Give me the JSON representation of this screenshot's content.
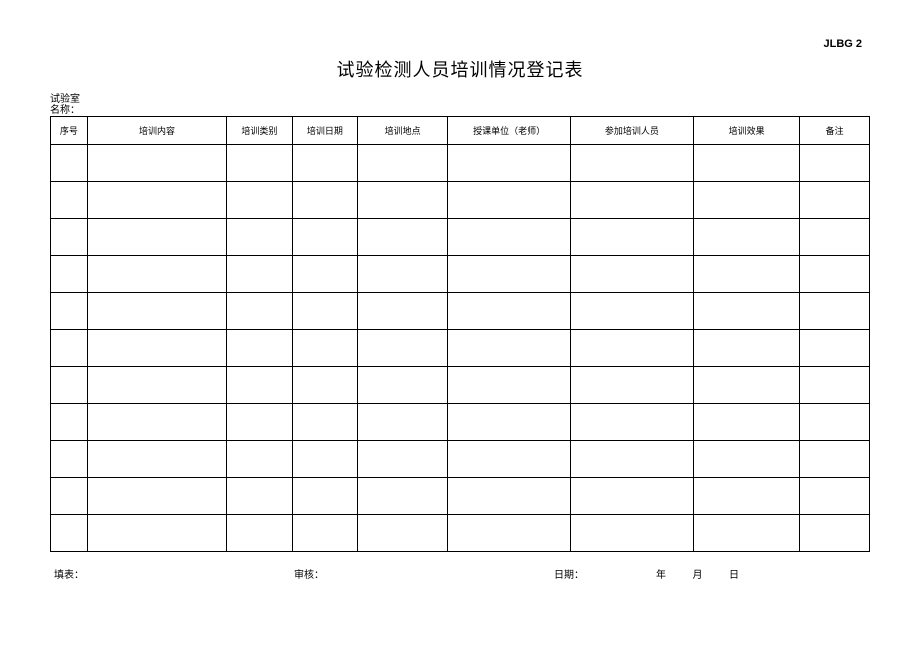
{
  "document_code": "JLBG 2",
  "title": "试验检测人员培训情况登记表",
  "lab_label_line1": "试验室",
  "lab_label_line2": "名称：",
  "columns": [
    {
      "label": "序号",
      "width": "4.5%"
    },
    {
      "label": "培训内容",
      "width": "17%"
    },
    {
      "label": "培训类别",
      "width": "8%"
    },
    {
      "label": "培训日期",
      "width": "8%"
    },
    {
      "label": "培训地点",
      "width": "11%"
    },
    {
      "label": "授课单位（老师）",
      "width": "15%"
    },
    {
      "label": "参加培训人员",
      "width": "15%"
    },
    {
      "label": "培训效果",
      "width": "13%"
    },
    {
      "label": "备注",
      "width": "8.5%"
    }
  ],
  "row_count": 11,
  "footer": {
    "fill_label": "填表：",
    "review_label": "审核：",
    "date_label": "日期：",
    "year_label": "年",
    "month_label": "月",
    "day_label": "日"
  },
  "style": {
    "border_color": "#000000",
    "background_color": "#ffffff",
    "text_color": "#000000",
    "title_fontsize": 18,
    "header_fontsize": 9,
    "footer_fontsize": 10
  }
}
